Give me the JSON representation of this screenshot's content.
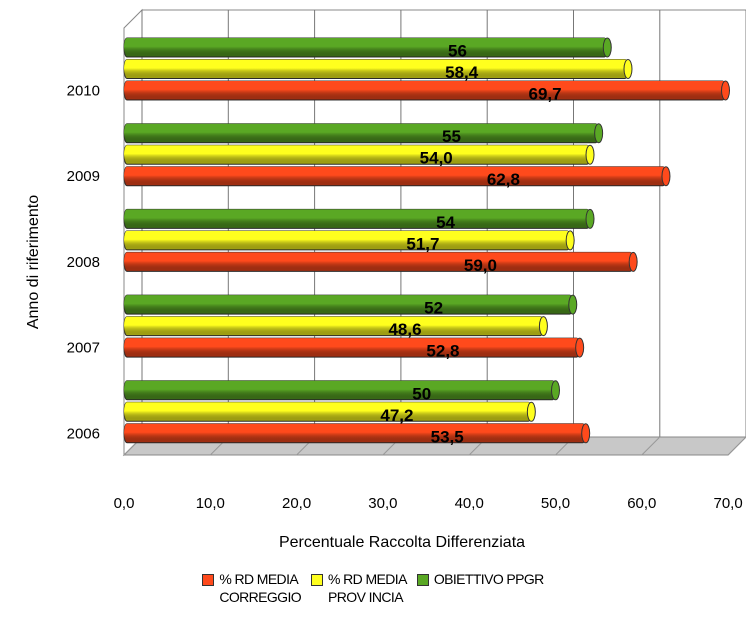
{
  "chart_data": {
    "type": "bar",
    "orientation": "horizontal",
    "categories": [
      "2006",
      "2007",
      "2008",
      "2009",
      "2010"
    ],
    "series": [
      {
        "name": "% RD MEDIA CORREGGIO",
        "color": "#ff4a1c",
        "values": [
          53.5,
          52.8,
          59.0,
          62.8,
          69.7
        ],
        "labels": [
          "53,5",
          "52,8",
          "59,0",
          "62,8",
          "69,7"
        ]
      },
      {
        "name": "% RD MEDIA PROVINCIA",
        "color": "#ffff1e",
        "values": [
          47.2,
          48.6,
          51.7,
          54.0,
          58.4
        ],
        "labels": [
          "47,2",
          "48,6",
          "51,7",
          "54,0",
          "58,4"
        ]
      },
      {
        "name": "OBIETTIVO PPGR",
        "color": "#5aa824",
        "values": [
          50,
          52,
          54,
          55,
          56
        ],
        "labels": [
          "50",
          "52",
          "54",
          "55",
          "56"
        ]
      }
    ],
    "xlabel": "Percentuale Raccolta Differenziata",
    "ylabel": "Anno di riferimento",
    "xlim": [
      0,
      70
    ],
    "xticks": [
      "0,0",
      "10,0",
      "20,0",
      "30,0",
      "40,0",
      "50,0",
      "60,0",
      "70,0"
    ],
    "grid": true,
    "legend_position": "bottom"
  },
  "legend": {
    "items": [
      {
        "label": "% RD MEDIA\nCORREGGIO",
        "color": "#ff4a1c"
      },
      {
        "label": "% RD MEDIA\nPROV INCIA",
        "color": "#ffff1e"
      },
      {
        "label": "OBIETTIVO PPGR",
        "color": "#5aa824"
      }
    ]
  }
}
